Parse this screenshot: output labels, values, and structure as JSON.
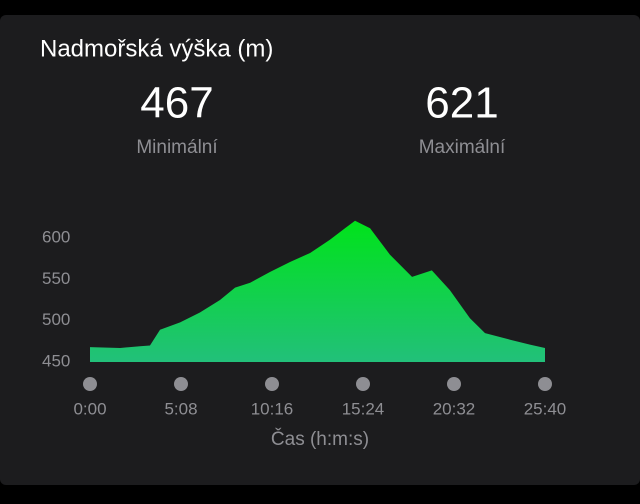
{
  "chart_data": {
    "type": "area",
    "title": "Nadmořská výška (m)",
    "stats": [
      {
        "value": 467,
        "label": "Minimální"
      },
      {
        "value": 621,
        "label": "Maximální"
      }
    ],
    "x_label": "Čas (h:m:s)",
    "x": [
      0,
      102,
      169,
      203,
      237,
      305,
      372,
      440,
      491,
      542,
      609,
      677,
      745,
      812,
      863,
      897,
      948,
      1015,
      1090,
      1157,
      1218,
      1286,
      1337,
      1422,
      1489,
      1540
    ],
    "values": [
      468,
      467,
      469,
      470,
      489,
      498,
      510,
      525,
      540,
      546,
      559,
      571,
      582,
      598,
      612,
      621,
      612,
      580,
      553,
      561,
      537,
      503,
      485,
      477,
      471,
      467
    ],
    "color_top": "#00e31a",
    "color_bottom": "#22c07a",
    "xlim": [
      0,
      1540
    ],
    "xticks": [
      {
        "value": 0,
        "label": "0:00"
      },
      {
        "value": 308,
        "label": "5:08"
      },
      {
        "value": 616,
        "label": "10:16"
      },
      {
        "value": 924,
        "label": "15:24"
      },
      {
        "value": 1232,
        "label": "20:32"
      },
      {
        "value": 1540,
        "label": "25:40"
      }
    ],
    "ylim": [
      450,
      630
    ],
    "yticks": [
      450,
      500,
      550,
      600
    ]
  }
}
